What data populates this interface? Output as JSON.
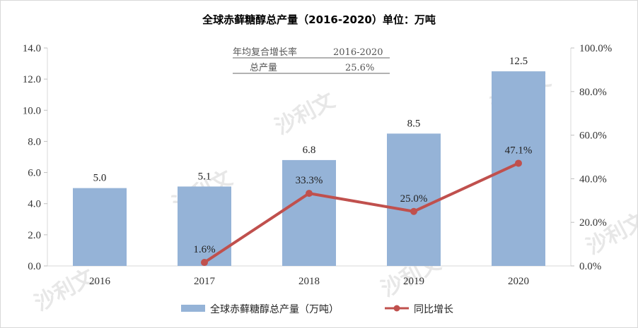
{
  "chart_data": {
    "type": "bar+line",
    "title": "全球赤藓糖醇总产量（2016-2020）单位：万吨",
    "categories": [
      "2016",
      "2017",
      "2018",
      "2019",
      "2020"
    ],
    "series": [
      {
        "name": "全球赤藓糖醇总产量（万吨）",
        "type": "bar",
        "axis": "left",
        "values": [
          5.0,
          5.1,
          6.8,
          8.5,
          12.5
        ],
        "labels": [
          "5.0",
          "5.1",
          "6.8",
          "8.5",
          "12.5"
        ],
        "color": "#95b3d7"
      },
      {
        "name": "同比增长",
        "type": "line",
        "axis": "right",
        "values": [
          null,
          1.6,
          33.3,
          25.0,
          47.1
        ],
        "labels": [
          "",
          "1.6%",
          "33.3%",
          "25.0%",
          "47.1%"
        ],
        "color": "#c0504d"
      }
    ],
    "left_axis": {
      "min": 0,
      "max": 14,
      "step": 2,
      "ticks": [
        "0.0",
        "2.0",
        "4.0",
        "6.0",
        "8.0",
        "10.0",
        "12.0",
        "14.0"
      ]
    },
    "right_axis": {
      "min": 0,
      "max": 100,
      "step": 20,
      "ticks": [
        "0.0%",
        "20.0%",
        "40.0%",
        "60.0%",
        "80.0%",
        "100.0%"
      ]
    },
    "grid": false,
    "legend_position": "bottom",
    "annotation": {
      "header_label": "年均复合增长率",
      "header_value": "2016-2020",
      "row_label": "总产量",
      "row_value": "25.6%"
    }
  },
  "watermark": {
    "text": "沙利文",
    "color": "#e7e7e7"
  }
}
